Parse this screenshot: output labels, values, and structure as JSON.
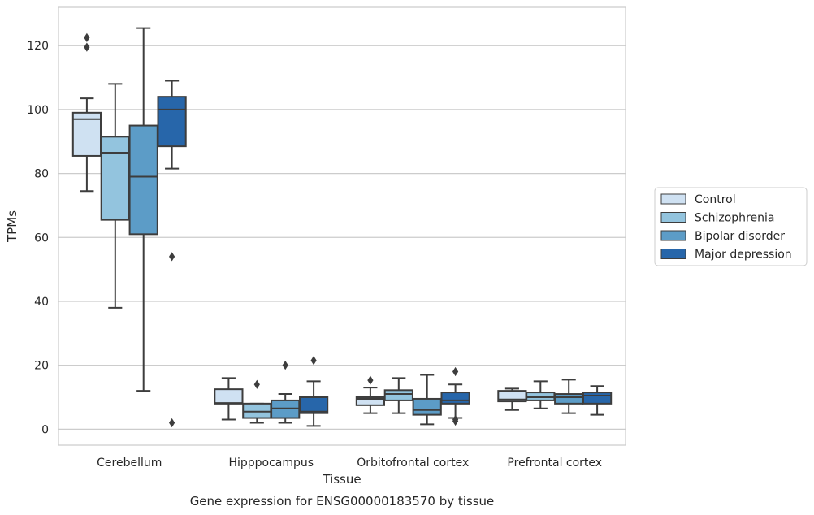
{
  "chart_data": {
    "type": "box",
    "xlabel": "Tissue",
    "ylabel": "TPMs",
    "caption": "Gene expression for ENSG00000183570 by tissue",
    "ylim": [
      -5,
      132
    ],
    "yticks": [
      0,
      20,
      40,
      60,
      80,
      100,
      120
    ],
    "grid": "horizontal",
    "legend_position": "right",
    "categories": [
      "Cerebellum",
      "Hipppocampus",
      "Orbitofrontal cortex",
      "Prefrontal cortex"
    ],
    "series": [
      {
        "name": "Control",
        "color": "#cfe1f2",
        "boxes": [
          {
            "whislo": 74.5,
            "q1": 85.5,
            "med": 97.0,
            "q3": 99.0,
            "whishi": 103.5,
            "fliers": [
              119.5,
              122.5
            ]
          },
          {
            "whislo": 3.0,
            "q1": 8.0,
            "med": 8.2,
            "q3": 12.5,
            "whishi": 16.0,
            "fliers": []
          },
          {
            "whislo": 5.0,
            "q1": 7.5,
            "med": 9.5,
            "q3": 10.0,
            "whishi": 13.0,
            "fliers": [
              15.3
            ]
          },
          {
            "whislo": 6.0,
            "q1": 8.7,
            "med": 9.3,
            "q3": 12.0,
            "whishi": 12.7,
            "fliers": []
          }
        ]
      },
      {
        "name": "Schizophrenia",
        "color": "#93c4de",
        "boxes": [
          {
            "whislo": 38.0,
            "q1": 65.5,
            "med": 86.5,
            "q3": 91.5,
            "whishi": 108.0,
            "fliers": []
          },
          {
            "whislo": 2.0,
            "q1": 3.5,
            "med": 5.5,
            "q3": 8.0,
            "whishi": 8.0,
            "fliers": [
              14.0
            ]
          },
          {
            "whislo": 5.0,
            "q1": 9.0,
            "med": 11.0,
            "q3": 12.2,
            "whishi": 16.0,
            "fliers": []
          },
          {
            "whislo": 6.5,
            "q1": 9.0,
            "med": 10.0,
            "q3": 11.5,
            "whishi": 15.0,
            "fliers": []
          }
        ]
      },
      {
        "name": "Bipolar disorder",
        "color": "#5c9cc7",
        "boxes": [
          {
            "whislo": 12.0,
            "q1": 61.0,
            "med": 79.0,
            "q3": 95.0,
            "whishi": 125.5,
            "fliers": []
          },
          {
            "whislo": 2.0,
            "q1": 3.5,
            "med": 6.5,
            "q3": 9.0,
            "whishi": 11.0,
            "fliers": [
              20.0
            ]
          },
          {
            "whislo": 1.5,
            "q1": 4.5,
            "med": 6.0,
            "q3": 9.5,
            "whishi": 17.0,
            "fliers": []
          },
          {
            "whislo": 5.0,
            "q1": 8.0,
            "med": 10.0,
            "q3": 11.0,
            "whishi": 15.5,
            "fliers": []
          }
        ]
      },
      {
        "name": "Major depression",
        "color": "#2766aa",
        "boxes": [
          {
            "whislo": 81.5,
            "q1": 88.5,
            "med": 100.0,
            "q3": 104.0,
            "whishi": 109.0,
            "fliers": [
              2.0,
              54.0
            ]
          },
          {
            "whislo": 1.0,
            "q1": 5.0,
            "med": 5.5,
            "q3": 10.0,
            "whishi": 15.0,
            "fliers": [
              21.5
            ]
          },
          {
            "whislo": 3.5,
            "q1": 8.0,
            "med": 9.0,
            "q3": 11.5,
            "whishi": 14.0,
            "fliers": [
              2.5,
              3.0,
              18.0
            ]
          },
          {
            "whislo": 4.5,
            "q1": 8.0,
            "med": 10.5,
            "q3": 11.5,
            "whishi": 13.5,
            "fliers": []
          }
        ]
      }
    ]
  }
}
